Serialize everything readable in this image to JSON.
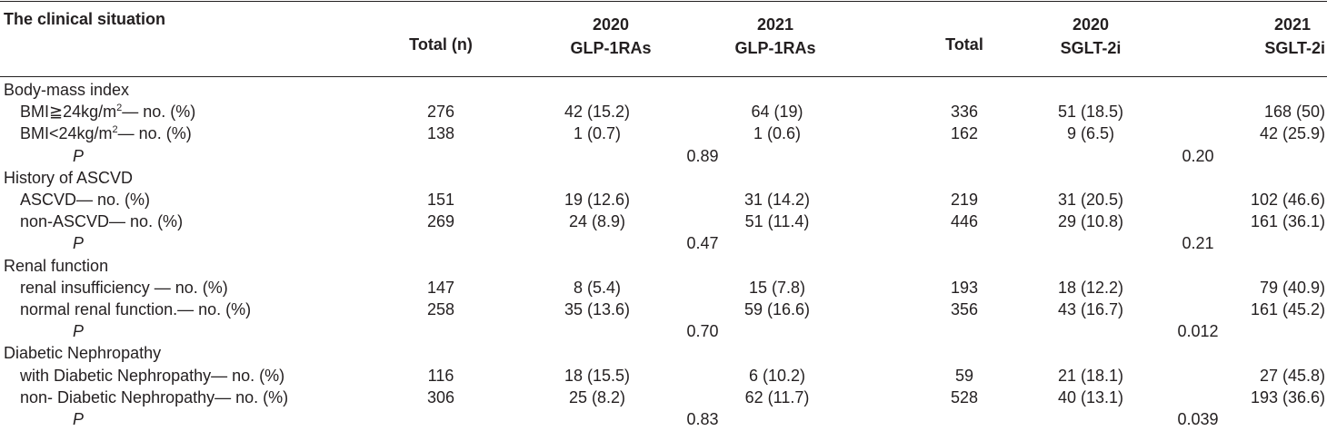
{
  "header": {
    "situation": "The clinical situation",
    "total_n": "Total (n)",
    "glp_2020_year": "2020",
    "glp_2020_name": "GLP-1RAs",
    "glp_2021_year": "2021",
    "glp_2021_name": "GLP-1RAs",
    "total": "Total",
    "sglt_2020_year": "2020",
    "sglt_2020_name": "SGLT-2i",
    "sglt_2021_year": "2021",
    "sglt_2021_name": "SGLT-2i"
  },
  "sections": [
    {
      "title": "Body-mass index",
      "rows": [
        {
          "pre": "BMI≧24kg/m",
          "sup": "2",
          "post": "— no. (%)",
          "total_n": "276",
          "glp2020": "42 (15.2)",
          "glp2021": "64 (19)",
          "total": "336",
          "sglt2020": "51 (18.5)",
          "sglt2021": "168 (50)"
        },
        {
          "pre": "BMI<24kg/m",
          "sup": "2",
          "post": "— no. (%)",
          "total_n": "138",
          "glp2020": "1 (0.7)",
          "glp2021": "1 (0.6)",
          "total": "162",
          "sglt2020": "9 (6.5)",
          "sglt2021": "42 (25.9)"
        }
      ],
      "p_label": "P",
      "p_glp": "0.89",
      "p_sglt": "0.20"
    },
    {
      "title": "History of ASCVD",
      "rows": [
        {
          "pre": "ASCVD— no. (%)",
          "total_n": "151",
          "glp2020": "19 (12.6)",
          "glp2021": "31 (14.2)",
          "total": "219",
          "sglt2020": "31 (20.5)",
          "sglt2021": "102 (46.6)"
        },
        {
          "pre": "non-ASCVD— no. (%)",
          "total_n": "269",
          "glp2020": "24 (8.9)",
          "glp2021": "51 (11.4)",
          "total": "446",
          "sglt2020": "29 (10.8)",
          "sglt2021": "161 (36.1)"
        }
      ],
      "p_label": "P",
      "p_glp": "0.47",
      "p_sglt": "0.21"
    },
    {
      "title": "Renal function",
      "rows": [
        {
          "pre": "renal insufficiency — no. (%)",
          "total_n": "147",
          "glp2020": "8 (5.4)",
          "glp2021": "15 (7.8)",
          "total": "193",
          "sglt2020": "18 (12.2)",
          "sglt2021": "79 (40.9)"
        },
        {
          "pre": "normal renal function.— no. (%)",
          "total_n": "258",
          "glp2020": "35 (13.6)",
          "glp2021": "59 (16.6)",
          "total": "356",
          "sglt2020": "43 (16.7)",
          "sglt2021": "161 (45.2)"
        }
      ],
      "p_label": "P",
      "p_glp": "0.70",
      "p_sglt": "0.012"
    },
    {
      "title": "Diabetic Nephropathy",
      "rows": [
        {
          "pre": "with Diabetic Nephropathy— no. (%)",
          "total_n": "116",
          "glp2020": "18 (15.5)",
          "glp2021": "6 (10.2)",
          "total": "59",
          "sglt2020": "21 (18.1)",
          "sglt2021": "27 (45.8)"
        },
        {
          "pre": "non- Diabetic Nephropathy— no. (%)",
          "total_n": "306",
          "glp2020": "25 (8.2)",
          "glp2021": "62 (11.7)",
          "total": "528",
          "sglt2020": "40 (13.1)",
          "sglt2021": "193 (36.6)"
        }
      ],
      "p_label": "P",
      "p_glp": "0.83",
      "p_sglt": "0.039"
    }
  ]
}
